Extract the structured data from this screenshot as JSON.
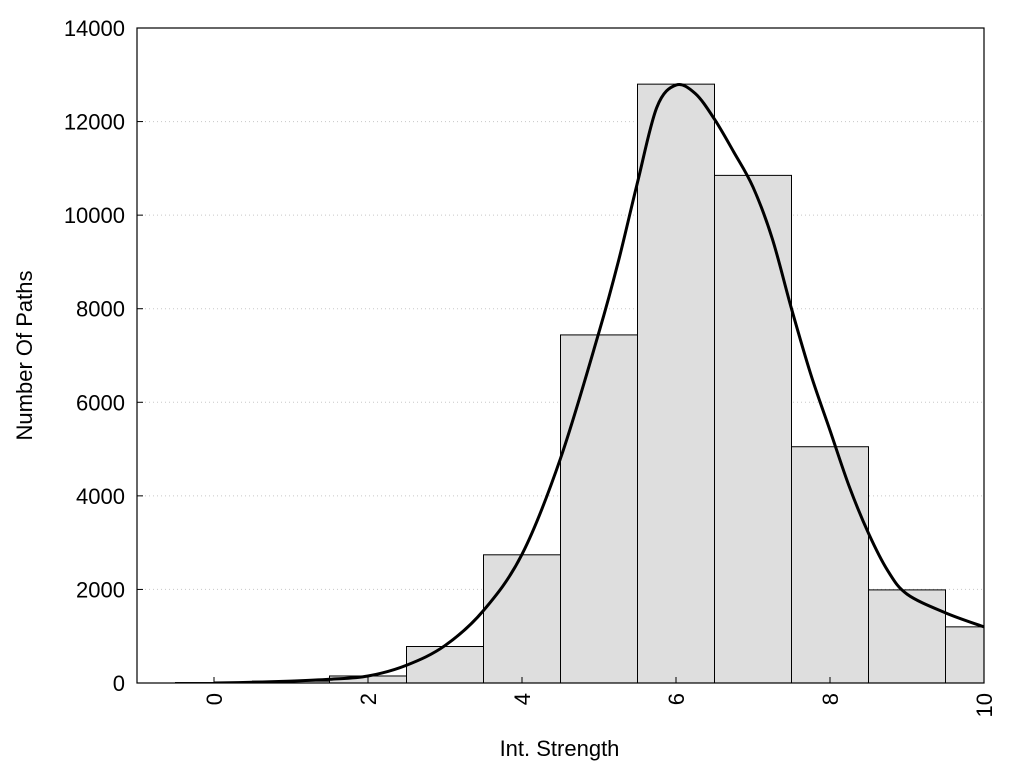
{
  "chart_data": {
    "type": "bar",
    "title": "",
    "xlabel": "Int. Strength",
    "ylabel": "Number Of Paths",
    "xlim": [
      -1,
      10
    ],
    "ylim": [
      0,
      14000
    ],
    "x_ticks": [
      0,
      2,
      4,
      6,
      8,
      10
    ],
    "y_ticks": [
      0,
      2000,
      4000,
      6000,
      8000,
      10000,
      12000,
      14000
    ],
    "grid": true,
    "bin_width": 1,
    "bins": [
      {
        "x": 0,
        "value": 10
      },
      {
        "x": 1,
        "value": 40
      },
      {
        "x": 2,
        "value": 150
      },
      {
        "x": 3,
        "value": 780
      },
      {
        "x": 4,
        "value": 2740
      },
      {
        "x": 5,
        "value": 7440
      },
      {
        "x": 6,
        "value": 12800
      },
      {
        "x": 7,
        "value": 10850
      },
      {
        "x": 8,
        "value": 5050
      },
      {
        "x": 9,
        "value": 1990
      },
      {
        "x": 10,
        "value": 1200
      }
    ],
    "curve": {
      "x": [
        0,
        0.5,
        1,
        1.5,
        2,
        2.5,
        3,
        3.5,
        4,
        4.5,
        5,
        5.25,
        5.5,
        5.75,
        6,
        6.25,
        6.5,
        6.75,
        7,
        7.25,
        7.5,
        7.75,
        8,
        8.25,
        8.5,
        8.75,
        9,
        9.5,
        10
      ],
      "y": [
        0,
        15,
        40,
        80,
        150,
        380,
        800,
        1550,
        2750,
        4800,
        7500,
        9000,
        10700,
        12300,
        12780,
        12600,
        12050,
        11350,
        10600,
        9500,
        8000,
        6600,
        5400,
        4200,
        3200,
        2400,
        1900,
        1500,
        1200
      ]
    }
  }
}
